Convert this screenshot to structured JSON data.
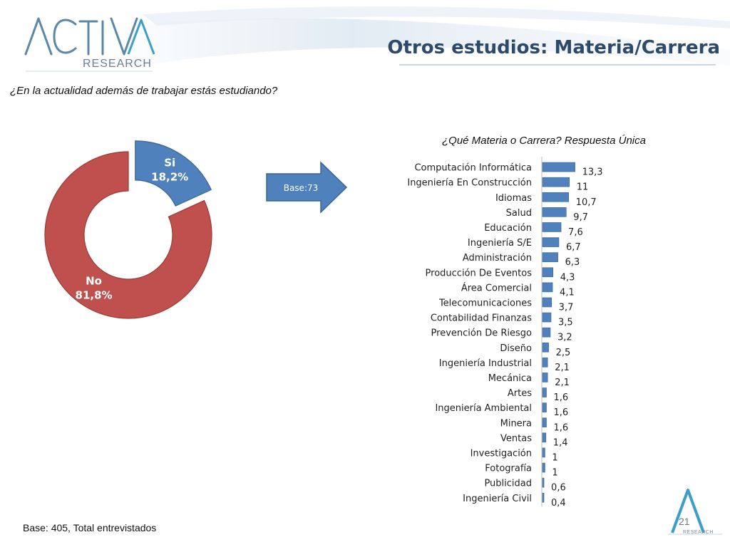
{
  "header": {
    "logo_text": "ACTIVA RESEARCH",
    "title": "Otros estudios: Materia/Carrera"
  },
  "question": "¿En la actualidad además de trabajar estás estudiando?",
  "arrow_label": "Base:73",
  "sub_question": "¿Qué Materia o Carrera? Respuesta Única",
  "footer": {
    "base_note": "Base: 405, Total entrevistados",
    "page_number": "21",
    "brand_small": "RESEARCH"
  },
  "colors": {
    "title": "#2e4a6b",
    "donut_si": "#4f81bd",
    "donut_no": "#c0504d",
    "bar": "#4f81bd",
    "arrow": "#4f81bd"
  },
  "chart_data": [
    {
      "type": "pie",
      "hole": true,
      "categories": [
        "Si",
        "No"
      ],
      "values": [
        18.2,
        81.8
      ],
      "labels": [
        "18,2%",
        "81,8%"
      ]
    },
    {
      "type": "bar",
      "orientation": "horizontal",
      "categories": [
        "Computación Informática",
        "Ingeniería En Construcción",
        "Idiomas",
        "Salud",
        "Educación",
        "Ingeniería S/E",
        "Administración",
        "Producción De Eventos",
        "Área Comercial",
        "Telecomunicaciones",
        "Contabilidad Finanzas",
        "Prevención De Riesgo",
        "Diseño",
        "Ingeniería Industrial",
        "Mecánica",
        "Artes",
        "Ingeniería Ambiental",
        "Minera",
        "Ventas",
        "Investigación",
        "Fotografía",
        "Publicidad",
        "Ingeniería Civil"
      ],
      "values": [
        13.3,
        11,
        10.7,
        9.7,
        7.6,
        6.7,
        6.3,
        4.3,
        4.1,
        3.7,
        3.5,
        3.2,
        2.5,
        2.1,
        2.1,
        1.6,
        1.6,
        1.6,
        1.4,
        1,
        1,
        0.6,
        0.4
      ],
      "data_labels": [
        "13,3",
        "11",
        "10,7",
        "9,7",
        "7,6",
        "6,7",
        "6,3",
        "4,3",
        "4,1",
        "3,7",
        "3,5",
        "3,2",
        "2,5",
        "2,1",
        "2,1",
        "1,6",
        "1,6",
        "1,6",
        "1,4",
        "1",
        "1",
        "0,6",
        "0,4"
      ],
      "xlim": [
        0,
        14
      ],
      "grid": false
    }
  ]
}
